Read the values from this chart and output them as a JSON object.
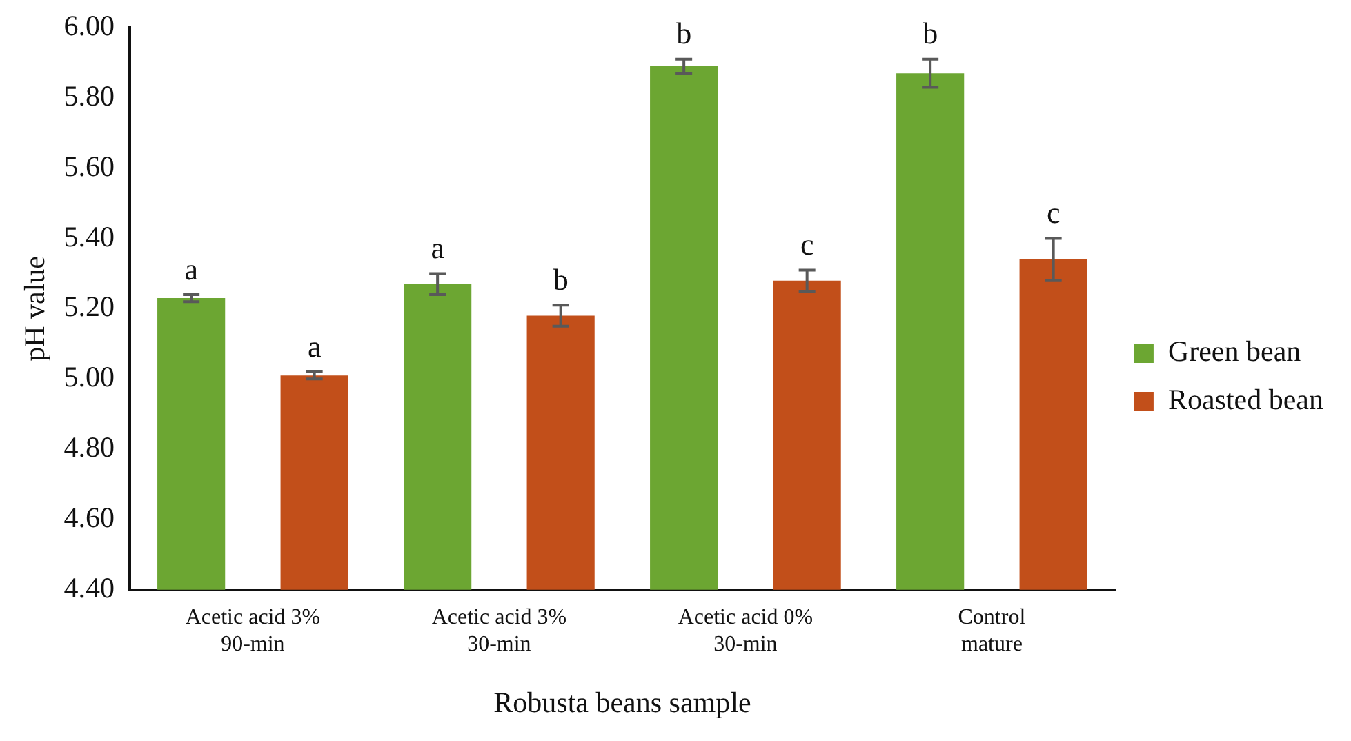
{
  "chart_data": {
    "type": "bar",
    "xlabel": "Robusta beans sample",
    "ylabel": "pH value",
    "categories": [
      "Acetic acid 3%\n90-min",
      "Acetic acid 3%\n30-min",
      "Acetic acid 0%\n30-min",
      "Control\nmature"
    ],
    "series": [
      {
        "name": "Green bean",
        "color": "#6ca632",
        "values": [
          5.23,
          5.27,
          5.89,
          5.87
        ],
        "errors": [
          0.01,
          0.03,
          0.02,
          0.04
        ]
      },
      {
        "name": "Roasted bean",
        "color": "#c24f1a",
        "values": [
          5.01,
          5.18,
          5.28,
          5.34
        ],
        "errors": [
          0.01,
          0.03,
          0.03,
          0.06
        ]
      }
    ],
    "ylim": [
      4.4,
      6.0
    ],
    "yticks": [
      {
        "value": 4.4,
        "label": "4.40"
      },
      {
        "value": 4.6,
        "label": "4.60"
      },
      {
        "value": 4.8,
        "label": "4.80"
      },
      {
        "value": 5.0,
        "label": "5.00"
      },
      {
        "value": 5.2,
        "label": "5.20"
      },
      {
        "value": 5.4,
        "label": "5.40"
      },
      {
        "value": 5.6,
        "label": "5.60"
      },
      {
        "value": 5.8,
        "label": "5.80"
      },
      {
        "value": 6.0,
        "label": "6.00"
      }
    ],
    "annotations": [
      "a",
      "a",
      "a",
      "b",
      "b",
      "c",
      "b",
      "c"
    ],
    "grid": false,
    "legend": "right"
  }
}
